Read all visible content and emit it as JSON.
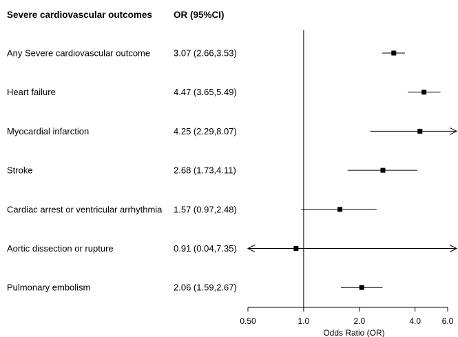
{
  "header": {
    "outcome_col": "Severe cardiovascular outcomes",
    "or_col": "OR (95%CI)"
  },
  "chart_data": {
    "type": "forest",
    "xlabel": "Odds Ratio (OR)",
    "x_scale": "log",
    "xlim": [
      0.5,
      6.0
    ],
    "xticks": [
      0.5,
      1.0,
      2.0,
      4.0,
      6.0
    ],
    "xtick_labels": [
      "0.50",
      "1.0",
      "2.0",
      "4.0",
      "6.0"
    ],
    "reference_line": 1.0,
    "rows": [
      {
        "label": "Any Severe cardiovascular outcome",
        "or_text": "3.07 (2.66,3.53)",
        "or": 3.07,
        "lower": 2.66,
        "upper": 3.53
      },
      {
        "label": "Heart failure",
        "or_text": "4.47 (3.65,5.49)",
        "or": 4.47,
        "lower": 3.65,
        "upper": 5.49
      },
      {
        "label": "Myocardial infarction",
        "or_text": "4.25 (2.29,8.07)",
        "or": 4.25,
        "lower": 2.29,
        "upper": 8.07
      },
      {
        "label": "Stroke",
        "or_text": "2.68 (1.73,4.11)",
        "or": 2.68,
        "lower": 1.73,
        "upper": 4.11
      },
      {
        "label": "Cardiac arrest or ventricular arrhythmia",
        "or_text": "1.57 (0.97,2.48)",
        "or": 1.57,
        "lower": 0.97,
        "upper": 2.48
      },
      {
        "label": "Aortic dissection or rupture",
        "or_text": "0.91 (0.04,7.35)",
        "or": 0.91,
        "lower": 0.04,
        "upper": 7.35
      },
      {
        "label": "Pulmonary embolism",
        "or_text": "2.06 (1.59,2.67)",
        "or": 2.06,
        "lower": 1.59,
        "upper": 2.67
      }
    ]
  }
}
